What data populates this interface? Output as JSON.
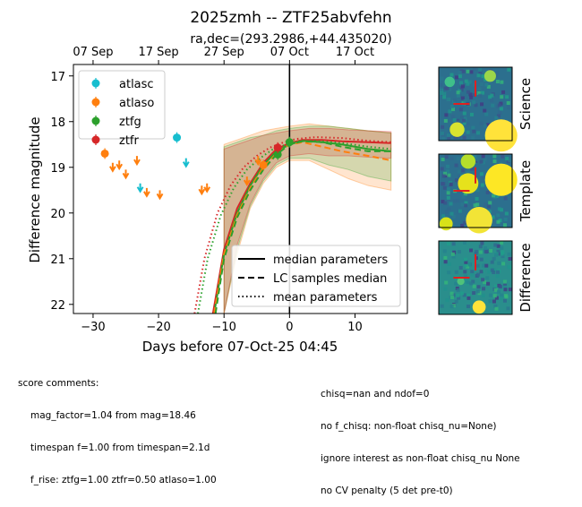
{
  "chart_data": {
    "type": "scatter",
    "title": "2025zmh -- ZTF25abvfehn",
    "subtitle": "ra,dec=(293.2986,+44.435020)",
    "xlabel": "Days before 07-Oct-25 04:45",
    "ylabel": "Difference magnitude",
    "xlim": [
      -33,
      18
    ],
    "ylim": [
      22.2,
      16.75
    ],
    "x_ticks": [
      -30,
      -20,
      -10,
      0,
      10
    ],
    "y_ticks": [
      17,
      18,
      19,
      20,
      21,
      22
    ],
    "top_axis_ticks": [
      {
        "x": -30,
        "label": "07 Sep"
      },
      {
        "x": -20,
        "label": "17 Sep"
      },
      {
        "x": -10,
        "label": "27 Sep"
      },
      {
        "x": 0,
        "label": "07 Oct"
      },
      {
        "x": 10,
        "label": "17 Oct"
      }
    ],
    "reference_line_x": 0,
    "legend_placement": "upper-left",
    "series": [
      {
        "name": "atlasc",
        "color": "#17becf",
        "detections": [
          {
            "x": -17.2,
            "y": 18.35
          }
        ],
        "upper_limits": [
          {
            "x": -22.8,
            "y": 19.45
          },
          {
            "x": -15.8,
            "y": 18.9
          }
        ]
      },
      {
        "name": "atlaso",
        "color": "#ff7f0e",
        "detections": [
          {
            "x": -28.2,
            "y": 18.7
          },
          {
            "x": -4.0,
            "y": 18.95
          }
        ],
        "upper_limits": [
          {
            "x": -27.0,
            "y": 19.0
          },
          {
            "x": -26.0,
            "y": 18.95
          },
          {
            "x": -25.0,
            "y": 19.15
          },
          {
            "x": -23.3,
            "y": 18.85
          },
          {
            "x": -21.8,
            "y": 19.55
          },
          {
            "x": -19.8,
            "y": 19.6
          },
          {
            "x": -13.4,
            "y": 19.5
          },
          {
            "x": -12.6,
            "y": 19.45
          },
          {
            "x": -6.5,
            "y": 19.3
          },
          {
            "x": -4.8,
            "y": 18.85
          }
        ]
      },
      {
        "name": "ztfg",
        "color": "#2ca02c",
        "detections": [
          {
            "x": -1.8,
            "y": 18.72
          },
          {
            "x": 0.0,
            "y": 18.45
          }
        ],
        "upper_limits": []
      },
      {
        "name": "ztfr",
        "color": "#d62728",
        "detections": [
          {
            "x": -1.8,
            "y": 18.57
          }
        ],
        "upper_limits": []
      }
    ],
    "model_legend": [
      "median parameters",
      "LC samples median",
      "mean parameters"
    ],
    "model_curves": [
      {
        "band": "ztfr",
        "color": "#d62728",
        "style": "solid",
        "points": [
          [
            -11.7,
            22.2
          ],
          [
            -10,
            20.8
          ],
          [
            -8,
            19.9
          ],
          [
            -6,
            19.35
          ],
          [
            -4,
            18.9
          ],
          [
            -2,
            18.6
          ],
          [
            0,
            18.47
          ],
          [
            2,
            18.4
          ],
          [
            5,
            18.4
          ],
          [
            8,
            18.43
          ],
          [
            12,
            18.45
          ],
          [
            15.5,
            18.47
          ]
        ]
      },
      {
        "band": "ztfg",
        "color": "#2ca02c",
        "style": "solid",
        "points": [
          [
            -11.5,
            22.2
          ],
          [
            -10,
            20.9
          ],
          [
            -8,
            20.0
          ],
          [
            -6,
            19.4
          ],
          [
            -4,
            18.95
          ],
          [
            -2,
            18.65
          ],
          [
            0,
            18.5
          ],
          [
            2,
            18.42
          ],
          [
            5,
            18.45
          ],
          [
            8,
            18.5
          ],
          [
            12,
            18.6
          ],
          [
            15.5,
            18.65
          ]
        ]
      },
      {
        "band": "atlaso",
        "color": "#ff7f0e",
        "style": "dashed",
        "points": [
          [
            -11.5,
            22.2
          ],
          [
            -10,
            20.9
          ],
          [
            -8,
            20.05
          ],
          [
            -6,
            19.45
          ],
          [
            -4,
            19.0
          ],
          [
            -2,
            18.7
          ],
          [
            0,
            18.5
          ],
          [
            2,
            18.45
          ],
          [
            5,
            18.55
          ],
          [
            8,
            18.65
          ],
          [
            12,
            18.75
          ],
          [
            15.5,
            18.85
          ]
        ]
      },
      {
        "band": "ztfg",
        "color": "#2ca02c",
        "style": "dashed",
        "points": [
          [
            -11.3,
            22.2
          ],
          [
            -10,
            21.0
          ],
          [
            -8,
            20.1
          ],
          [
            -6,
            19.5
          ],
          [
            -4,
            19.05
          ],
          [
            -2,
            18.72
          ],
          [
            0,
            18.5
          ],
          [
            2,
            18.43
          ],
          [
            5,
            18.45
          ],
          [
            8,
            18.55
          ],
          [
            12,
            18.65
          ],
          [
            15.5,
            18.65
          ]
        ]
      },
      {
        "band": "ztfr",
        "color": "#d62728",
        "style": "dotted",
        "points": [
          [
            -14.5,
            22.2
          ],
          [
            -13,
            21.0
          ],
          [
            -11,
            20.0
          ],
          [
            -9,
            19.4
          ],
          [
            -7,
            19.0
          ],
          [
            -5,
            18.75
          ],
          [
            -3,
            18.57
          ],
          [
            -1,
            18.46
          ],
          [
            1,
            18.38
          ],
          [
            4,
            18.34
          ],
          [
            8,
            18.36
          ],
          [
            12,
            18.42
          ],
          [
            15.5,
            18.45
          ]
        ]
      },
      {
        "band": "ztfg",
        "color": "#2ca02c",
        "style": "dotted",
        "points": [
          [
            -14.0,
            22.2
          ],
          [
            -12.5,
            21.0
          ],
          [
            -10.5,
            20.05
          ],
          [
            -8.5,
            19.45
          ],
          [
            -6.5,
            19.05
          ],
          [
            -4.5,
            18.8
          ],
          [
            -2.5,
            18.6
          ],
          [
            -0.5,
            18.5
          ],
          [
            1.5,
            18.43
          ],
          [
            4,
            18.42
          ],
          [
            8,
            18.47
          ],
          [
            12,
            18.55
          ],
          [
            15.5,
            18.6
          ]
        ]
      }
    ],
    "bands": [
      {
        "band": "atlaso",
        "color": "#ff7f0e",
        "lower": [
          [
            -10,
            22.2
          ],
          [
            -8,
            20.9
          ],
          [
            -6,
            19.9
          ],
          [
            -4,
            19.35
          ],
          [
            -2,
            19.0
          ],
          [
            0,
            18.85
          ],
          [
            3,
            18.85
          ],
          [
            6,
            19.05
          ],
          [
            9,
            19.25
          ],
          [
            12,
            19.4
          ],
          [
            15.5,
            19.5
          ]
        ],
        "upper": [
          [
            -10,
            18.5
          ],
          [
            -8,
            18.4
          ],
          [
            -6,
            18.3
          ],
          [
            -4,
            18.2
          ],
          [
            -2,
            18.15
          ],
          [
            0,
            18.1
          ],
          [
            3,
            18.05
          ],
          [
            6,
            18.1
          ],
          [
            9,
            18.15
          ],
          [
            12,
            18.2
          ],
          [
            15.5,
            18.25
          ]
        ]
      },
      {
        "band": "ztfg",
        "color": "#2ca02c",
        "lower": [
          [
            -10,
            22.2
          ],
          [
            -8,
            20.8
          ],
          [
            -6,
            19.85
          ],
          [
            -4,
            19.3
          ],
          [
            -2,
            18.95
          ],
          [
            0,
            18.8
          ],
          [
            3,
            18.8
          ],
          [
            6,
            18.95
          ],
          [
            9,
            19.05
          ],
          [
            12,
            19.2
          ],
          [
            15.5,
            19.3
          ]
        ],
        "upper": [
          [
            -10,
            18.55
          ],
          [
            -8,
            18.45
          ],
          [
            -6,
            18.35
          ],
          [
            -4,
            18.3
          ],
          [
            -2,
            18.2
          ],
          [
            0,
            18.15
          ],
          [
            3,
            18.1
          ],
          [
            6,
            18.1
          ],
          [
            9,
            18.15
          ],
          [
            12,
            18.2
          ],
          [
            15.5,
            18.25
          ]
        ]
      },
      {
        "band": "ztfr",
        "color": "#d62728",
        "lower": [
          [
            -10,
            22.2
          ],
          [
            -8,
            20.7
          ],
          [
            -6,
            19.8
          ],
          [
            -4,
            19.25
          ],
          [
            -2,
            18.9
          ],
          [
            0,
            18.75
          ],
          [
            3,
            18.7
          ],
          [
            6,
            18.75
          ],
          [
            9,
            18.75
          ],
          [
            12,
            18.78
          ],
          [
            15.5,
            18.8
          ]
        ],
        "upper": [
          [
            -10,
            18.6
          ],
          [
            -8,
            18.5
          ],
          [
            -6,
            18.4
          ],
          [
            -4,
            18.3
          ],
          [
            -2,
            18.25
          ],
          [
            0,
            18.2
          ],
          [
            3,
            18.15
          ],
          [
            6,
            18.15
          ],
          [
            9,
            18.18
          ],
          [
            12,
            18.2
          ],
          [
            15.5,
            18.22
          ]
        ]
      }
    ],
    "image_panels": [
      "Science",
      "Template",
      "Difference"
    ]
  },
  "comments": {
    "header": "score comments:",
    "left": [
      "mag_factor=1.04 from mag=18.46",
      "timespan f=1.00 from timespan=2.1d",
      "f_rise: ztfg=1.00 ztfr=0.50 atlaso=1.00"
    ],
    "right": [
      "chisq=nan and ndof=0",
      "no f_chisq: non-float chisq_nu=None)",
      "ignore interest as non-float chisq_nu None",
      "no CV penalty (5 det pre-t0)"
    ]
  }
}
